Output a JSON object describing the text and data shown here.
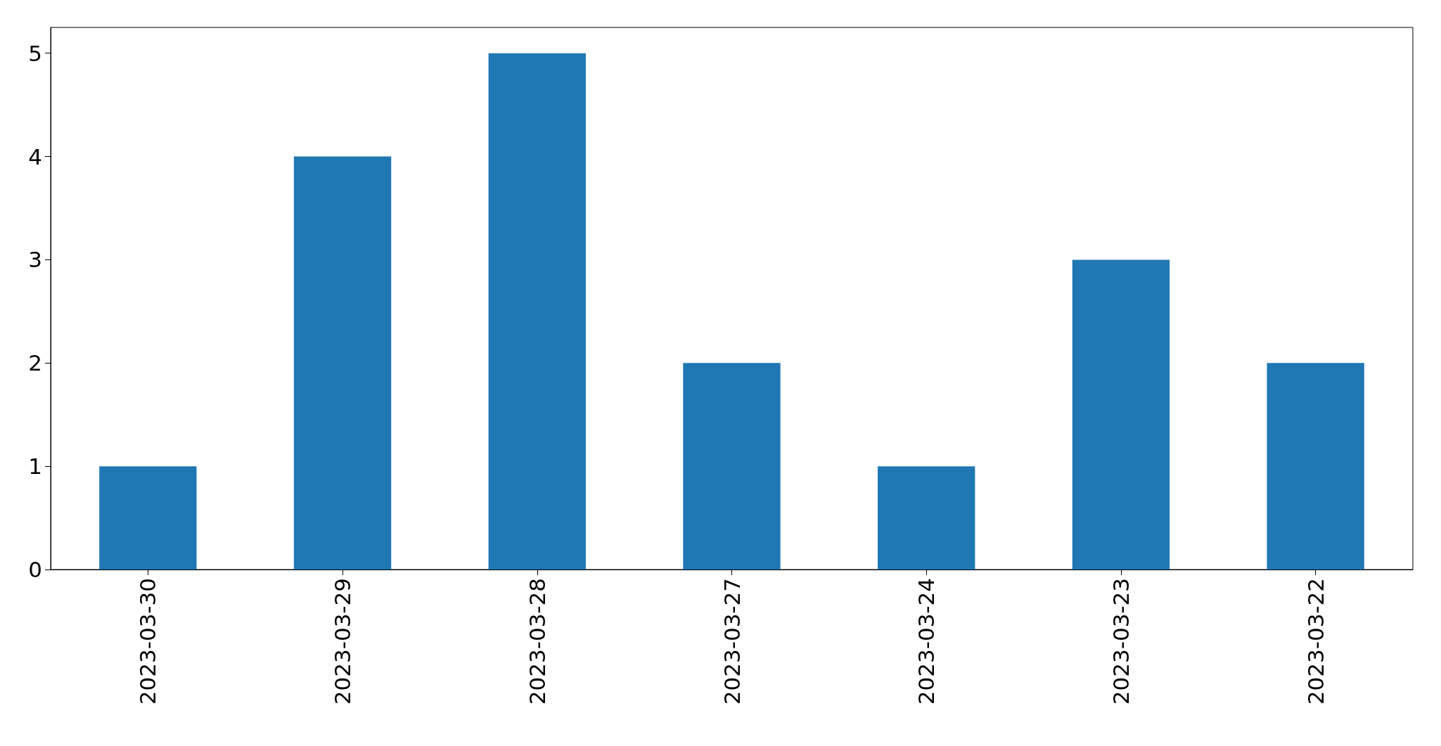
{
  "chart_data": {
    "type": "bar",
    "categories": [
      "2023-03-30",
      "2023-03-29",
      "2023-03-28",
      "2023-03-27",
      "2023-03-24",
      "2023-03-23",
      "2023-03-22"
    ],
    "values": [
      1,
      4,
      5,
      2,
      1,
      3,
      2
    ],
    "color": "#1f77b4",
    "ylim": [
      0,
      5.25
    ],
    "yticks": [
      0,
      1,
      2,
      3,
      4,
      5
    ]
  }
}
